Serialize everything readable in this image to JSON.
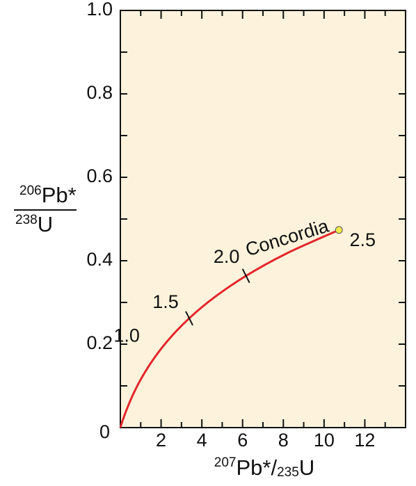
{
  "chart_data": {
    "type": "line",
    "xlabel": {
      "num_sup": "207",
      "num_text": "Pb*",
      "slash": "/",
      "den_sub": "235",
      "den_text": "U"
    },
    "ylabel": {
      "num_sup": "206",
      "num_text": "Pb*",
      "den_sup": "238",
      "den_text": "U"
    },
    "series": [
      {
        "name": "Concordia",
        "color": "#e3262b",
        "x": [
          0,
          0.1035,
          0.2792,
          0.6362,
          1.0929,
          1.6774,
          2.4249,
          3.381,
          4.604,
          6.168,
          8.17,
          10.73
        ],
        "values": [
          0,
          0.0156,
          0.0395,
          0.0807,
          0.1234,
          0.1678,
          0.214,
          0.262,
          0.3119,
          0.3638,
          0.4177,
          0.4737
        ]
      }
    ],
    "markers": [
      {
        "label": "1.0",
        "x": 1.6774,
        "y": 0.1678,
        "symbol": "none"
      },
      {
        "label": "1.5",
        "x": 3.381,
        "y": 0.262,
        "symbol": "tick"
      },
      {
        "label": "2.0",
        "x": 6.168,
        "y": 0.3638,
        "symbol": "tick"
      },
      {
        "label": "2.5",
        "x": 10.73,
        "y": 0.4737,
        "symbol": "dot",
        "color": "#f2e84a"
      }
    ],
    "xlim": [
      0,
      14
    ],
    "ylim": [
      0,
      1.0
    ],
    "xticks": [
      2,
      4,
      6,
      8,
      10,
      12
    ],
    "xminorticks": [
      1,
      3,
      5,
      7,
      9,
      11,
      13
    ],
    "yticks": [
      0,
      0.2,
      0.4,
      0.6,
      0.8,
      {
        "value": 1.0,
        "label": "1.0"
      }
    ],
    "yminorticks": [
      0.1,
      0.3,
      0.5,
      0.7,
      0.9
    ],
    "background": "#fdf3dc"
  }
}
